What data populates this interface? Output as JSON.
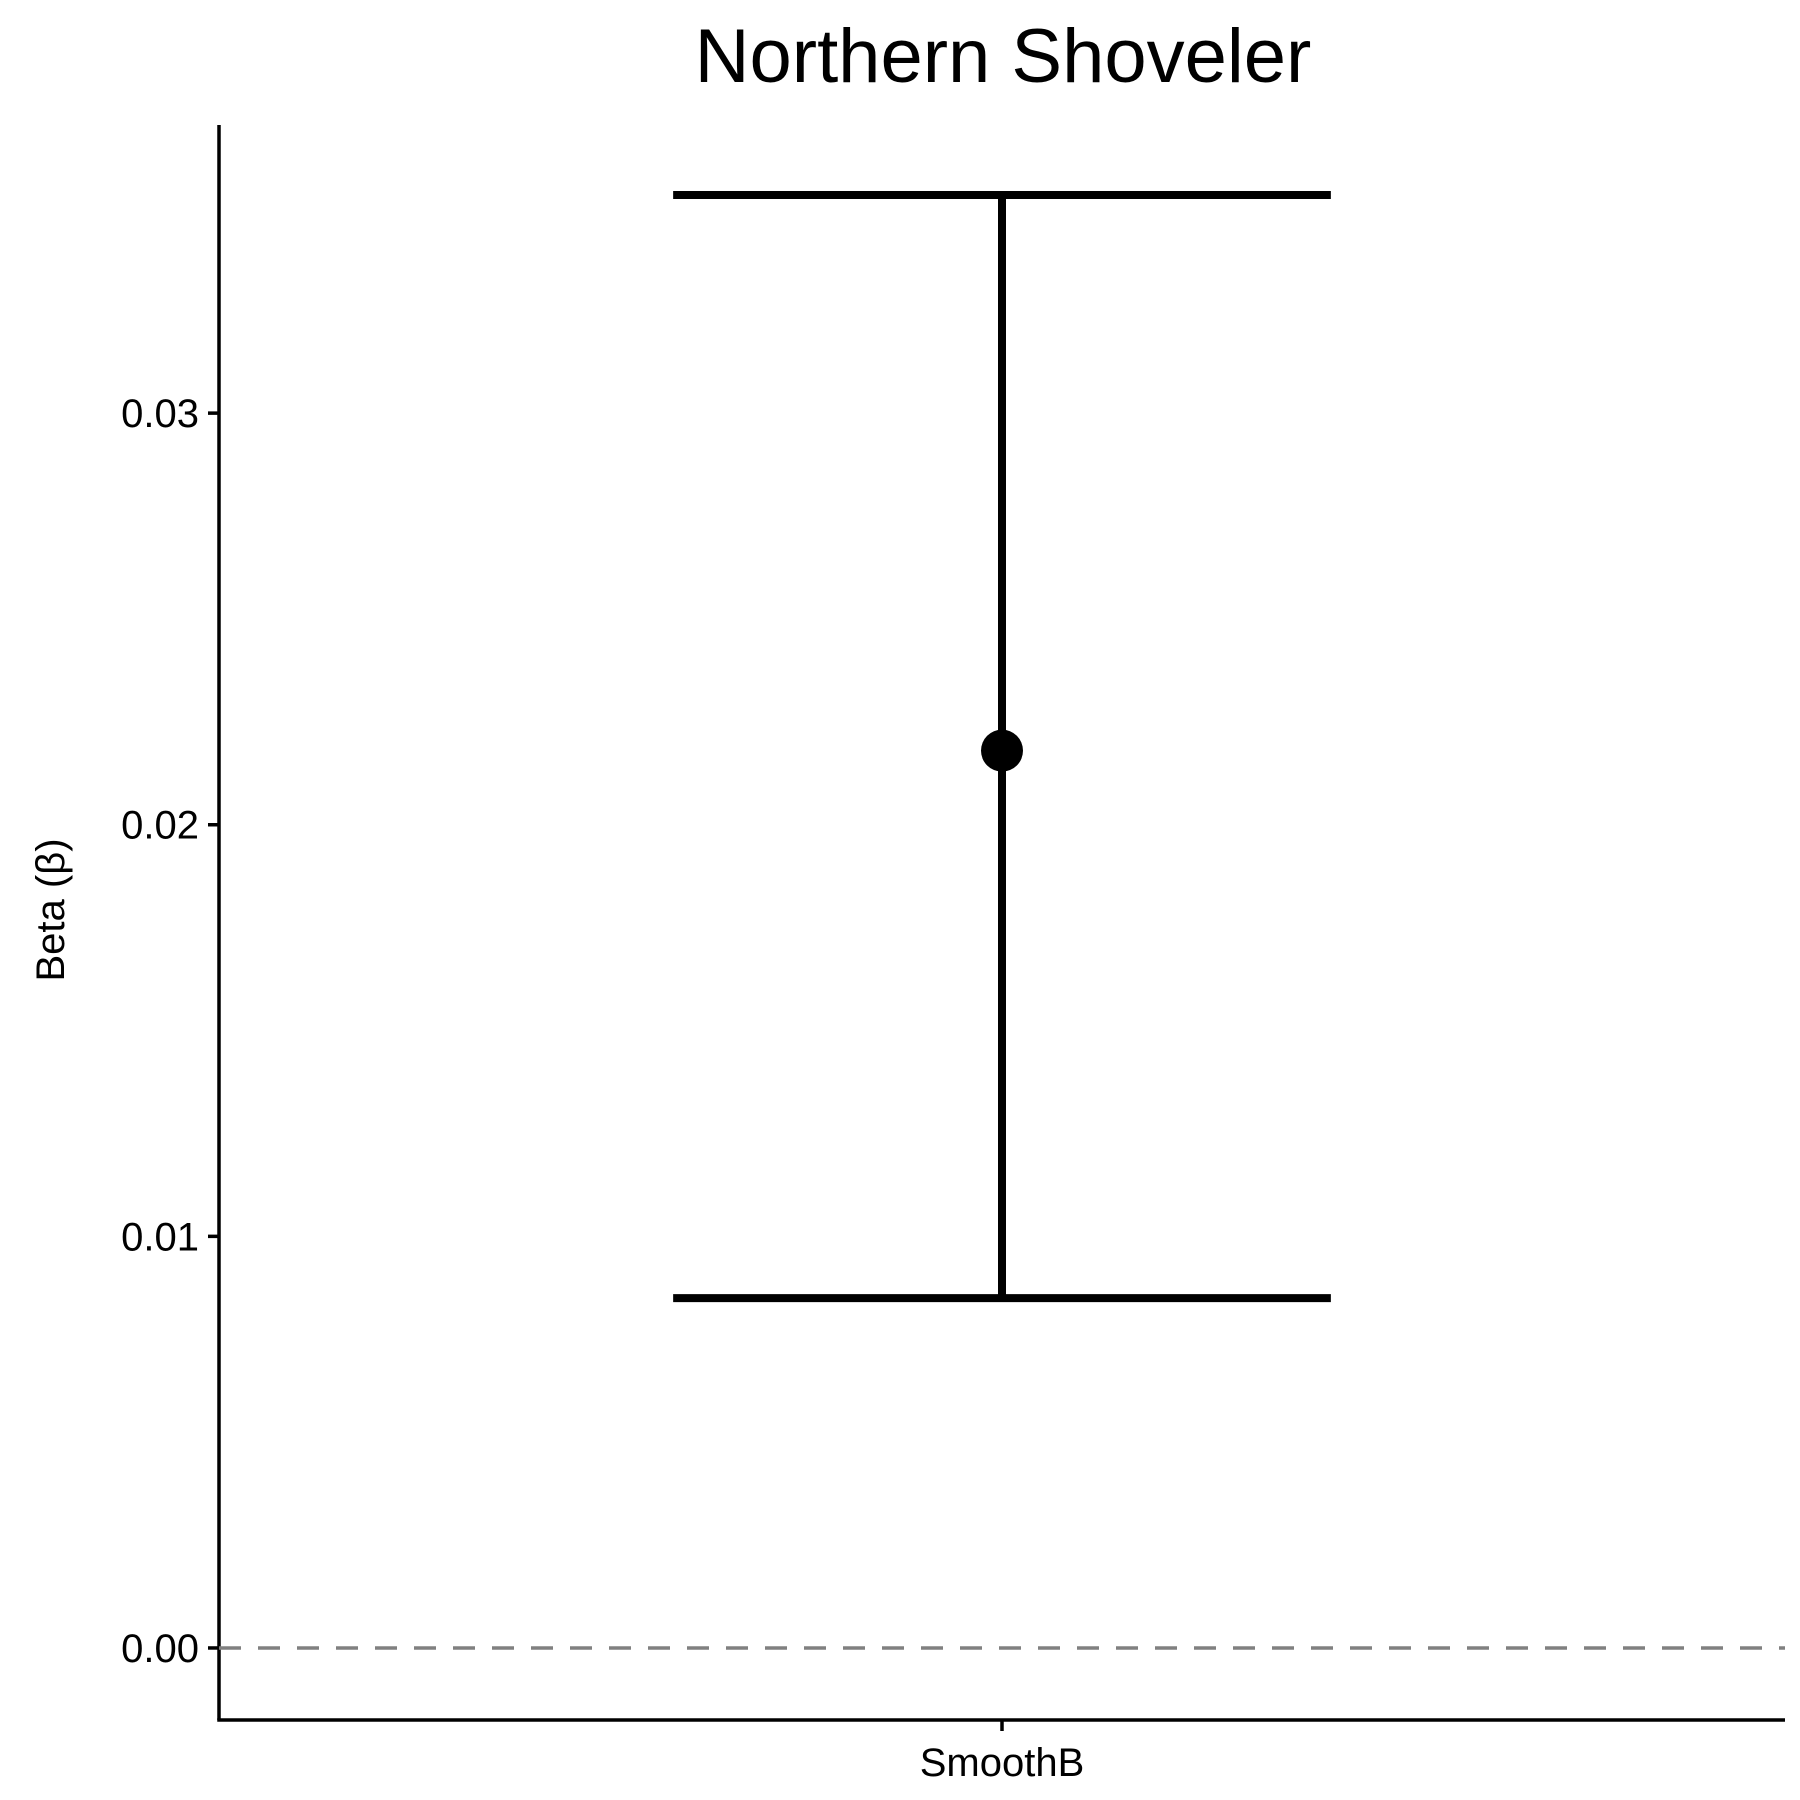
{
  "chart_data": {
    "type": "errorbar",
    "title": "Northern Shoveler",
    "xlabel": "",
    "ylabel": "Beta (β)",
    "categories": [
      "SmoothB"
    ],
    "points": [
      {
        "category": "SmoothB",
        "estimate": 0.0218,
        "lower": 0.0085,
        "upper": 0.0353
      }
    ],
    "ylim": [
      -0.00175,
      0.037
    ],
    "yticks": [
      0.0,
      0.01,
      0.02,
      0.03
    ],
    "ytick_labels": [
      "0.00",
      "0.01",
      "0.02",
      "0.03"
    ],
    "reference_line": {
      "y": 0.0,
      "style": "dashed",
      "color": "#808080"
    },
    "grid": false,
    "legend": "none",
    "colors": {
      "marks": "#000000",
      "axis": "#000000"
    }
  }
}
